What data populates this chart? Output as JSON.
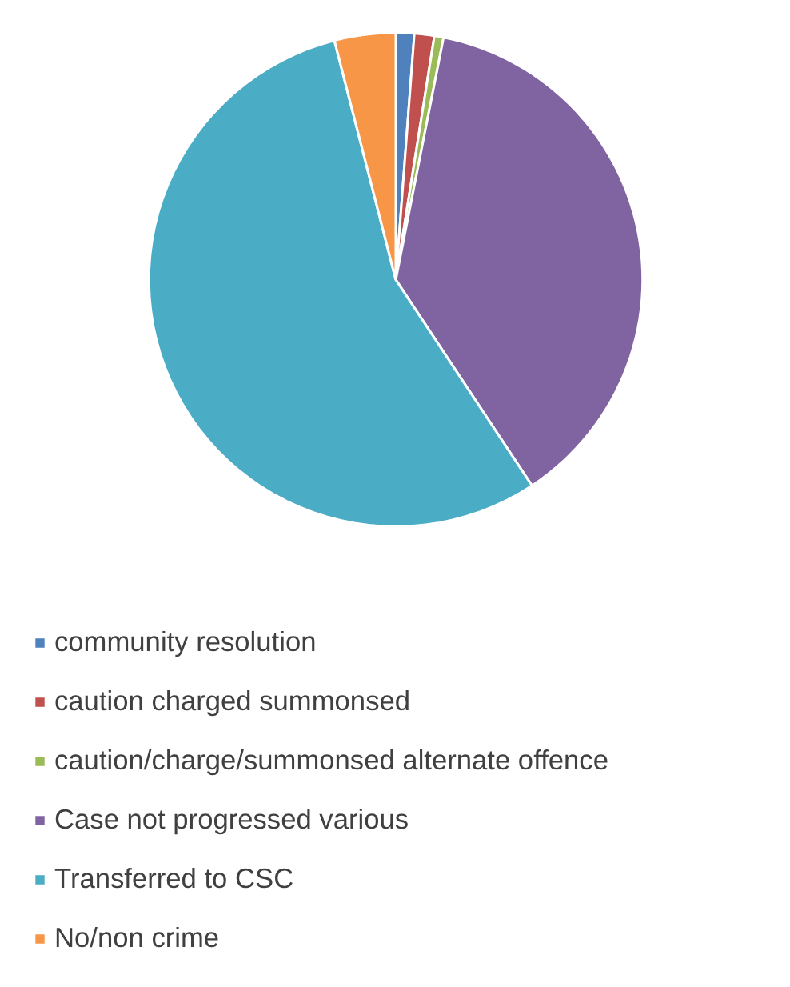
{
  "chart_data": {
    "type": "pie",
    "categories": [
      "community resolution",
      "caution charged summonsed",
      "caution/charge/summonsed alternate offence",
      "Case not progressed various",
      "Transferred to CSC",
      "No/non crime"
    ],
    "values": [
      1.2,
      1.3,
      0.6,
      37.6,
      55.3,
      4.0
    ],
    "colors": [
      "#4f81bd",
      "#c0504d",
      "#9bbb59",
      "#8064a2",
      "#4bacc6",
      "#f79646"
    ],
    "legend": "bottom"
  }
}
